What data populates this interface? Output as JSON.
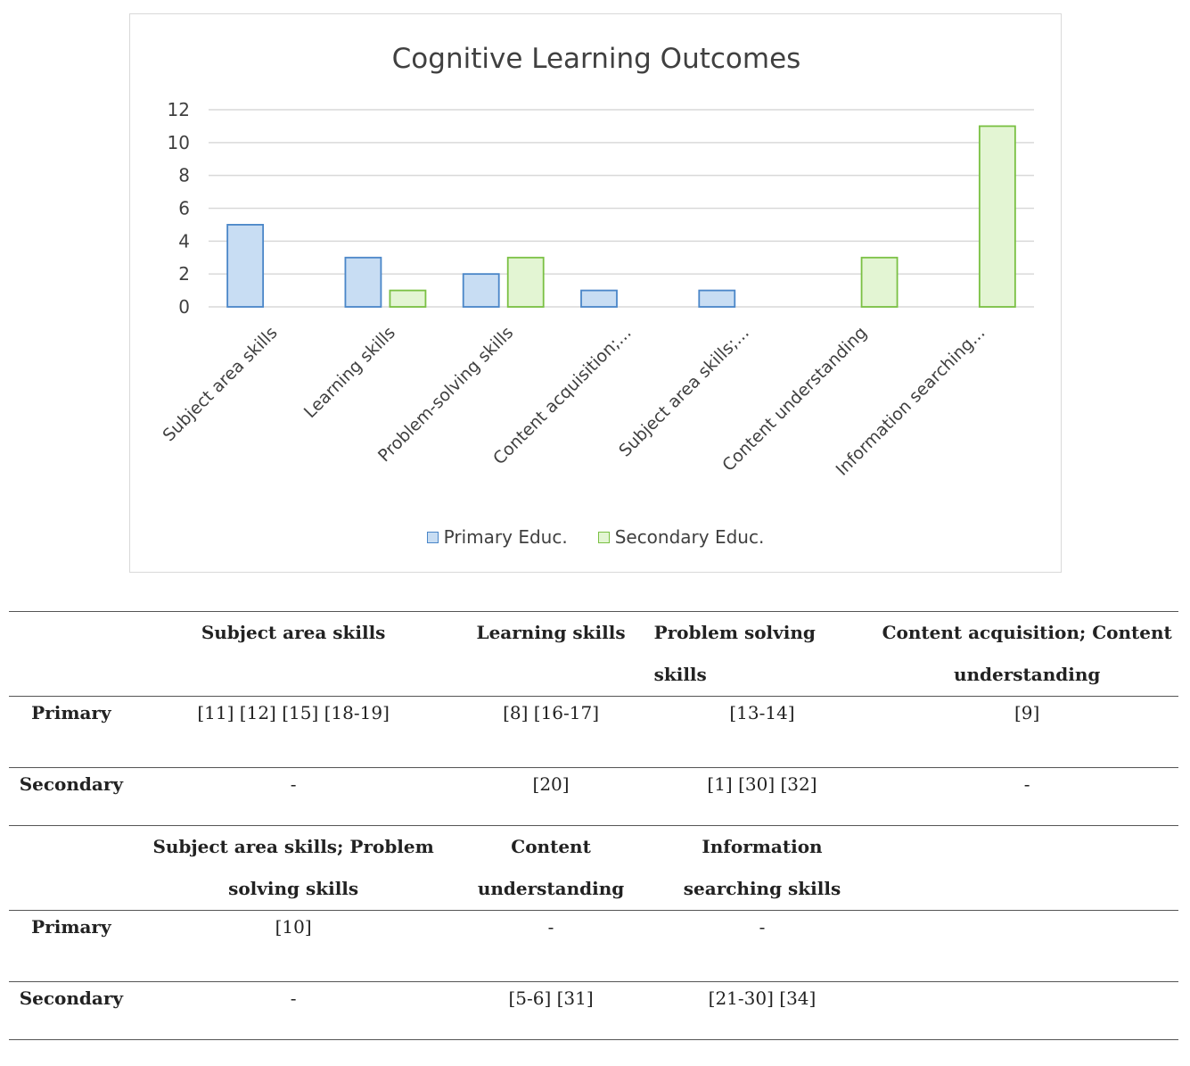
{
  "chart_data": {
    "type": "bar",
    "title": "Cognitive Learning Outcomes",
    "categories": [
      "Subject area skills",
      "Learning skills",
      "Problem-solving skills",
      "Content acquisition;...",
      "Subject area skills;...",
      "Content understanding",
      "Information searching..."
    ],
    "series": [
      {
        "name": "Primary Educ.",
        "values": [
          5,
          3,
          2,
          1,
          1,
          0,
          0
        ],
        "color": "#4a86c8",
        "fill": "#c8ddf3"
      },
      {
        "name": "Secondary Educ.",
        "values": [
          0,
          1,
          3,
          0,
          0,
          3,
          11
        ],
        "color": "#7ac043",
        "fill": "#e3f5d3"
      }
    ],
    "yticks": [
      "0",
      "2",
      "4",
      "6",
      "8",
      "10",
      "12"
    ],
    "ylim": [
      0,
      12
    ],
    "grid": true,
    "legend_position": "bottom"
  },
  "table": {
    "block1": {
      "headers": [
        "Subject area skills",
        "Learning skills",
        "Problem solving skills",
        "Content acquisition; Content understanding"
      ],
      "rows": [
        {
          "label": "Primary",
          "cells": [
            "[11] [12] [15] [18-19]",
            "[8] [16-17]",
            "[13-14]",
            "[9]"
          ]
        },
        {
          "label": "Secondary",
          "cells": [
            "-",
            "[20]",
            "[1] [30] [32]",
            "-"
          ]
        }
      ]
    },
    "block2": {
      "headers": [
        "Subject area skills; Problem solving skills",
        "Content understanding",
        "Information searching skills"
      ],
      "rows": [
        {
          "label": "Primary",
          "cells": [
            "[10]",
            "-",
            "-"
          ]
        },
        {
          "label": "Secondary",
          "cells": [
            "-",
            "[5-6] [31]",
            "[21-30] [34]"
          ]
        }
      ]
    }
  }
}
